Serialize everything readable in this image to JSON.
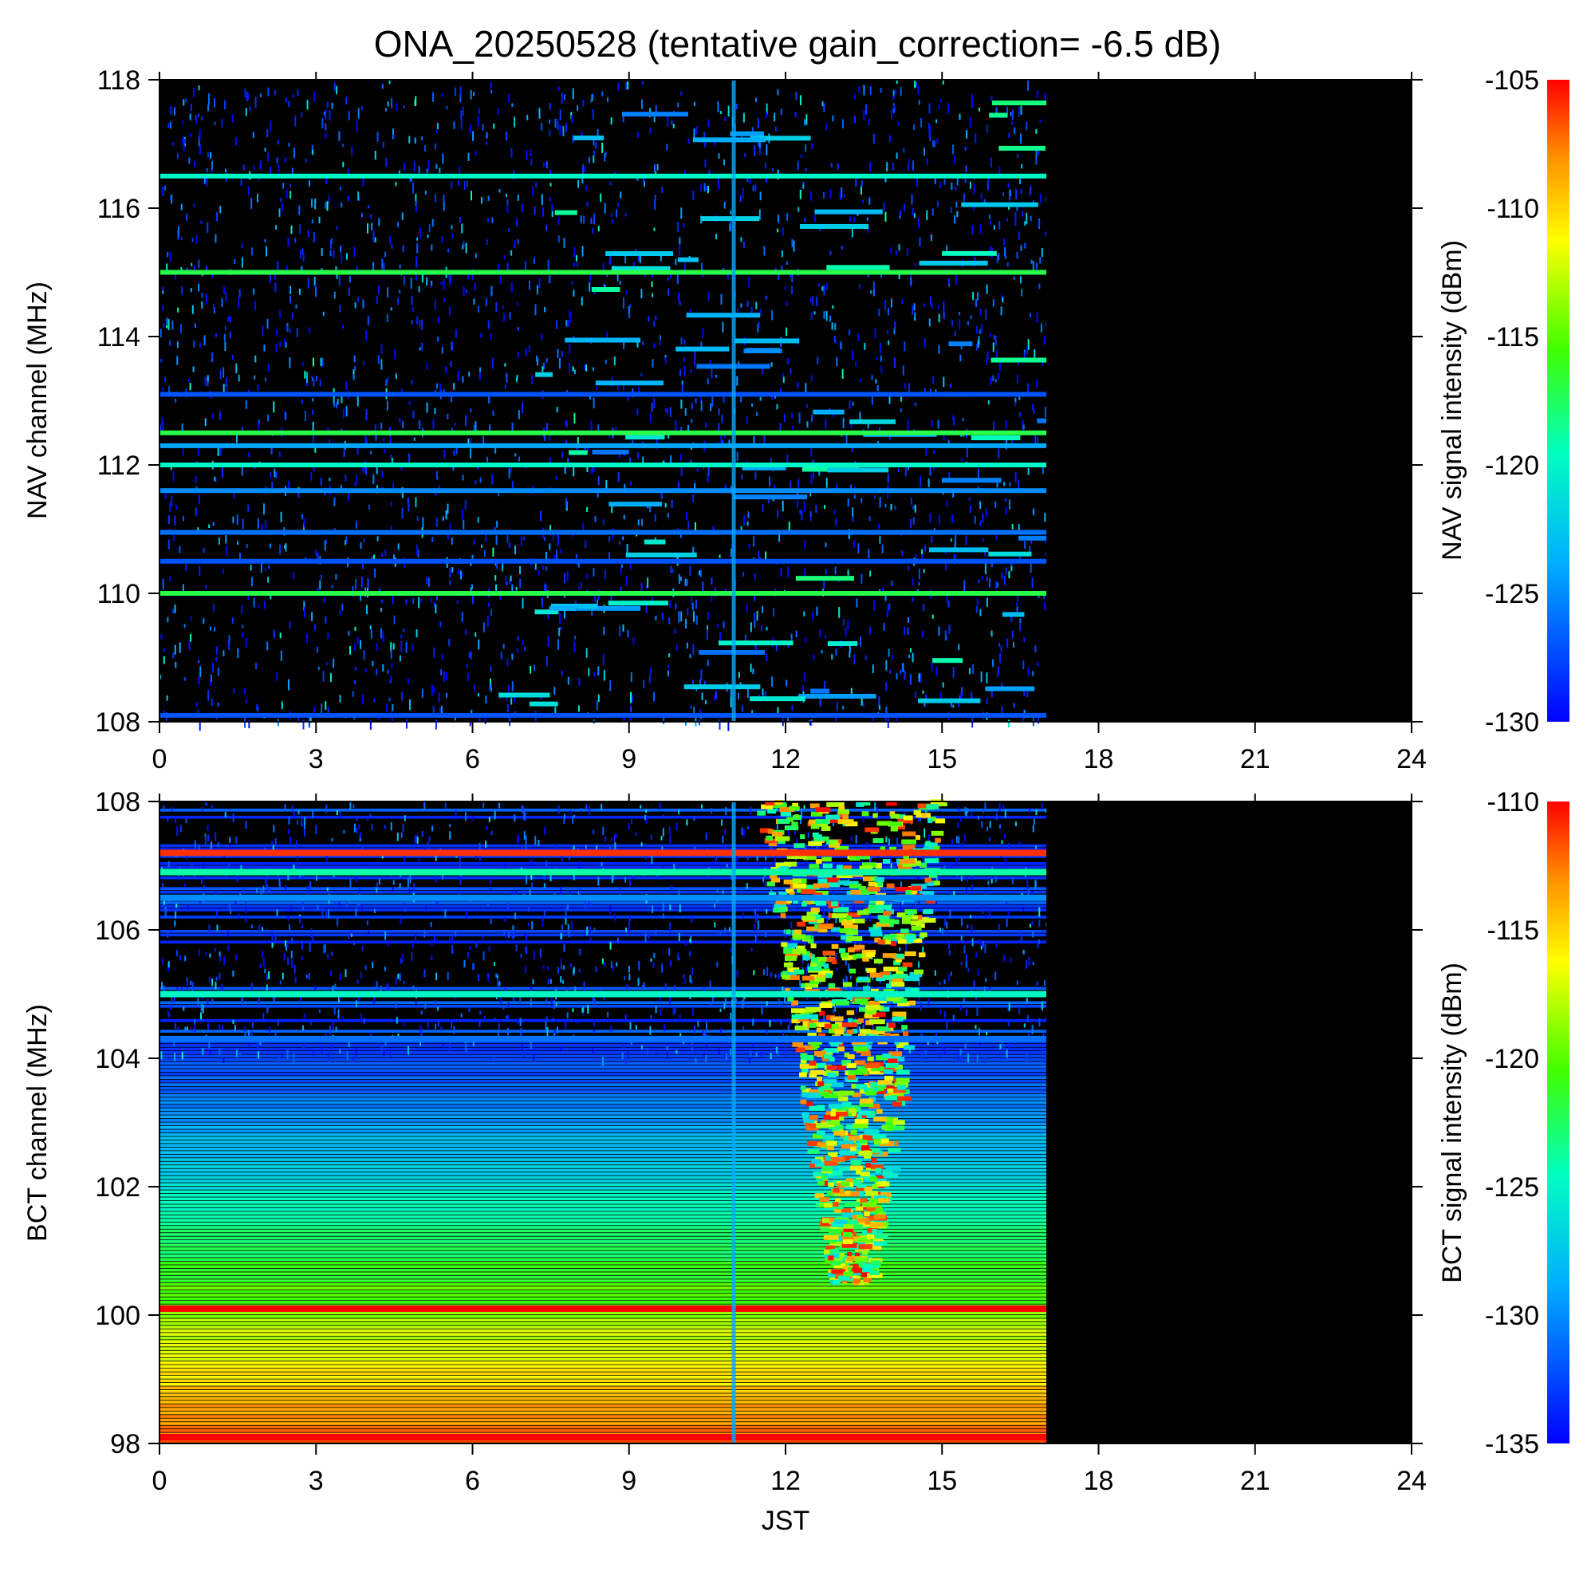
{
  "title": "ONA_20250528 (tentative gain_correction= -6.5 dB)",
  "chart_data": [
    {
      "type": "heatmap",
      "panel": "NAV",
      "ylabel": "NAV channel (MHz)",
      "xlabel": "",
      "colorbar_label": "NAV signal intensity (dBm)",
      "xlim": [
        0,
        24
      ],
      "ylim": [
        108,
        118
      ],
      "x_ticks": [
        "0",
        "3",
        "6",
        "9",
        "12",
        "15",
        "18",
        "21",
        "24"
      ],
      "y_ticks": [
        "108",
        "110",
        "112",
        "114",
        "116",
        "118"
      ],
      "y_tick_values": [
        108,
        110,
        112,
        114,
        116,
        118
      ],
      "color_range": [
        -130,
        -105
      ],
      "colorbar_ticks": [
        "-105",
        "-110",
        "-115",
        "-120",
        "-125",
        "-130"
      ],
      "data_end_time": 17.0,
      "background_color": "#000000",
      "continuous_lines": [
        {
          "freq": 116.5,
          "level": -120
        },
        {
          "freq": 115.0,
          "level": -117
        },
        {
          "freq": 112.5,
          "level": -117
        },
        {
          "freq": 112.3,
          "level": -124
        },
        {
          "freq": 112.0,
          "level": -120
        },
        {
          "freq": 111.6,
          "level": -125
        },
        {
          "freq": 110.95,
          "level": -126
        },
        {
          "freq": 110.5,
          "level": -127
        },
        {
          "freq": 110.0,
          "level": -117
        },
        {
          "freq": 113.1,
          "level": -127
        },
        {
          "freq": 108.1,
          "level": -127
        }
      ],
      "vertical_interference_time": 11.0
    },
    {
      "type": "heatmap",
      "panel": "BCT",
      "ylabel": "BCT channel (MHz)",
      "xlabel": "JST",
      "colorbar_label": "BCT signal intensity (dBm)",
      "xlim": [
        0,
        24
      ],
      "ylim": [
        98,
        108
      ],
      "x_ticks": [
        "0",
        "3",
        "6",
        "9",
        "12",
        "15",
        "18",
        "21",
        "24"
      ],
      "y_ticks": [
        "98",
        "100",
        "102",
        "104",
        "106",
        "108"
      ],
      "y_tick_values": [
        98,
        100,
        102,
        104,
        106,
        108
      ],
      "color_range": [
        -135,
        -110
      ],
      "colorbar_ticks": [
        "-110",
        "-115",
        "-120",
        "-125",
        "-130",
        "-135"
      ],
      "data_end_time": 17.0,
      "background_color": "#000000",
      "strong_lines": [
        {
          "freq": 107.2,
          "level": -111
        },
        {
          "freq": 106.9,
          "level": -124
        },
        {
          "freq": 106.5,
          "level": -130
        },
        {
          "freq": 105.0,
          "level": -125
        },
        {
          "freq": 104.3,
          "level": -131
        },
        {
          "freq": 100.1,
          "level": -110
        },
        {
          "freq": 98.1,
          "level": -110
        }
      ],
      "vertical_interference_time": 11.0
    }
  ]
}
